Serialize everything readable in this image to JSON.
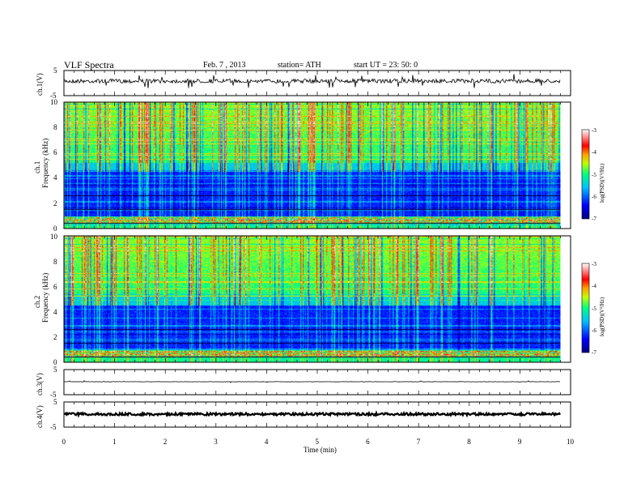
{
  "header": {
    "title": "VLF  Spectra",
    "date": "Feb. 7  , 2013",
    "station": "station= ATH",
    "start": "start  UT  =    23: 50: 0"
  },
  "panels": {
    "ch1_wave": {
      "ylabel": "ch.1(V)",
      "ymax_label": "5",
      "ymin_label": "-5"
    },
    "ch1_spec": {
      "ylabel_ch": "ch.1",
      "ylabel": "Frequency  (kHz)",
      "yticks": [
        "0",
        "2",
        "4",
        "6",
        "8",
        "10"
      ],
      "cb_label": "log(PSD)(V²/Hz)",
      "cb_ticks": [
        "-3",
        "-4",
        "-5",
        "-6",
        "-7"
      ]
    },
    "ch2_spec": {
      "ylabel_ch": "ch.2",
      "ylabel": "Frequency  (kHz)",
      "yticks": [
        "0",
        "2",
        "4",
        "6",
        "8",
        "10"
      ],
      "cb_label": "log(PSD)(V²/Hz)",
      "cb_ticks": [
        "-3",
        "-4",
        "-5",
        "-6",
        "-7"
      ]
    },
    "ch3_wave": {
      "ylabel": "ch.3(V)",
      "ymax_label": "5",
      "ymin_label": "-5"
    },
    "ch4_wave": {
      "ylabel": "ch.4(V)",
      "ymax_label": "5",
      "ymin_label": "-5"
    }
  },
  "xaxis": {
    "label": "Time  (min)",
    "ticks": [
      "0",
      "1",
      "2",
      "3",
      "4",
      "5",
      "6",
      "7",
      "8",
      "9",
      "10"
    ]
  },
  "chart_data": {
    "type": "heatmap",
    "title": "VLF  Spectra",
    "xlabel": "Time  (min)",
    "xlim": [
      0,
      10
    ],
    "data_end_min": 9.8,
    "ylabel": "Frequency  (kHz)",
    "ylim": [
      0,
      10
    ],
    "colorbar": {
      "label": "log(PSD)(V²/Hz)",
      "range": [
        -7,
        -3
      ]
    },
    "waveform_ylim": [
      -5,
      5
    ],
    "colors": {
      "low": "#00007f",
      "mid": "#00ff80",
      "high": "#ff0000"
    }
  }
}
